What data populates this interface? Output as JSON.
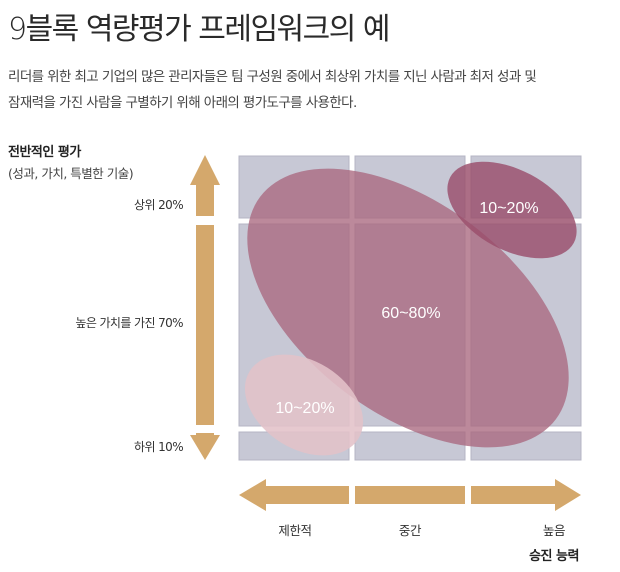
{
  "title": "9블록 역량평가 프레임워크의 예",
  "description": [
    "리더를 위한 최고 기업의 많은 관리자들은 팀 구성원 중에서 최상위 가치를 지닌 사람과 최저 성과 및",
    "잠재력을 가진 사람을 구별하기 위해 아래의 평가도구를 사용한다."
  ],
  "y_axis": {
    "title": "전반적인 평가",
    "subtitle": "(성과, 가치, 특별한 기술)",
    "levels": [
      "상위 20%",
      "높은 가치를 가진 70%",
      "하위 10%"
    ]
  },
  "x_axis": {
    "title": "승진 능력",
    "levels": [
      "제한적",
      "중간",
      "높음"
    ]
  },
  "regions": [
    {
      "label": "10~20%",
      "position": "top-right",
      "color": "#a05874"
    },
    {
      "label": "60~80%",
      "position": "center-diagonal",
      "color": "#a9687f"
    },
    {
      "label": "10~20%",
      "position": "bottom-left",
      "color": "#dbb4bd"
    }
  ],
  "colors": {
    "grid_cell": "#c7c8d5",
    "grid_border": "#b4b5c4",
    "arrow": "#d4a86c",
    "text": "#333333"
  }
}
